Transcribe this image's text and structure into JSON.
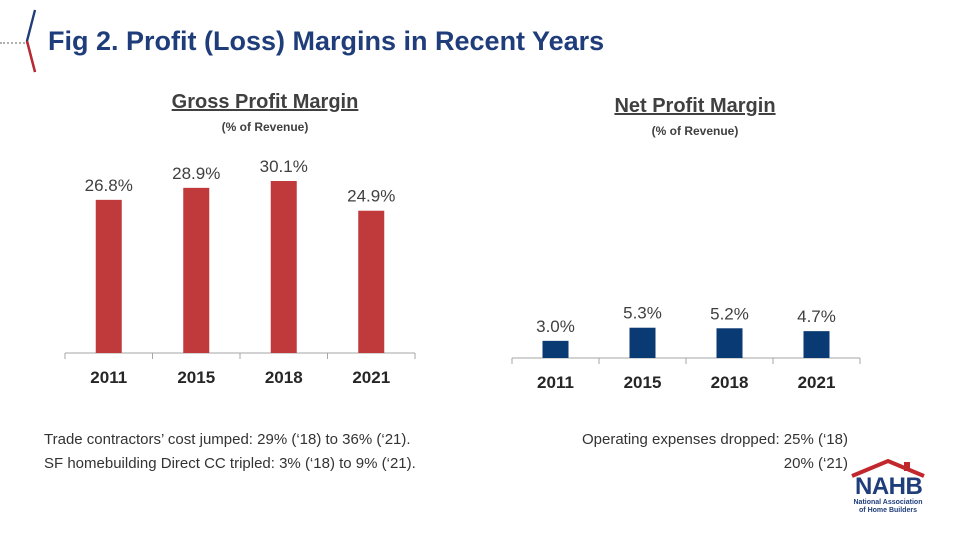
{
  "slide": {
    "title": "Fig 2. Profit (Loss) Margins in Recent Years",
    "accent_color": "#c0282d",
    "title_color": "#1f3d7a"
  },
  "chart_data": [
    {
      "type": "bar",
      "title": "Gross Profit Margin",
      "subtitle": "(% of Revenue)",
      "categories": [
        "2011",
        "2015",
        "2018",
        "2021"
      ],
      "values": [
        26.8,
        28.9,
        30.1,
        24.9
      ],
      "data_labels": [
        "26.8%",
        "28.9%",
        "30.1%",
        "24.9%"
      ],
      "color": "#c0393b",
      "ylim": [
        0,
        30.1
      ],
      "grid": false
    },
    {
      "type": "bar",
      "title": "Net Profit Margin",
      "subtitle": "(% of Revenue)",
      "categories": [
        "2011",
        "2015",
        "2018",
        "2021"
      ],
      "values": [
        3.0,
        5.3,
        5.2,
        4.7
      ],
      "data_labels": [
        "3.0%",
        "5.3%",
        "5.2%",
        "4.7%"
      ],
      "color": "#0a3a73",
      "ylim": [
        0,
        30.1
      ],
      "grid": false
    }
  ],
  "notes": {
    "left_line1": "Trade contractors’ cost jumped: 29% (‘18) to 36% (‘21).",
    "left_line2": "SF homebuilding Direct CC tripled:  3% (‘18) to 9% (‘21).",
    "right_line1": "Operating expenses dropped:  25% (‘18)",
    "right_line2": "20% (‘21)"
  },
  "logo": {
    "text": "NAHB",
    "sub_line1": "National Association",
    "sub_line2": "of Home Builders",
    "icon": "house-roof-icon"
  }
}
